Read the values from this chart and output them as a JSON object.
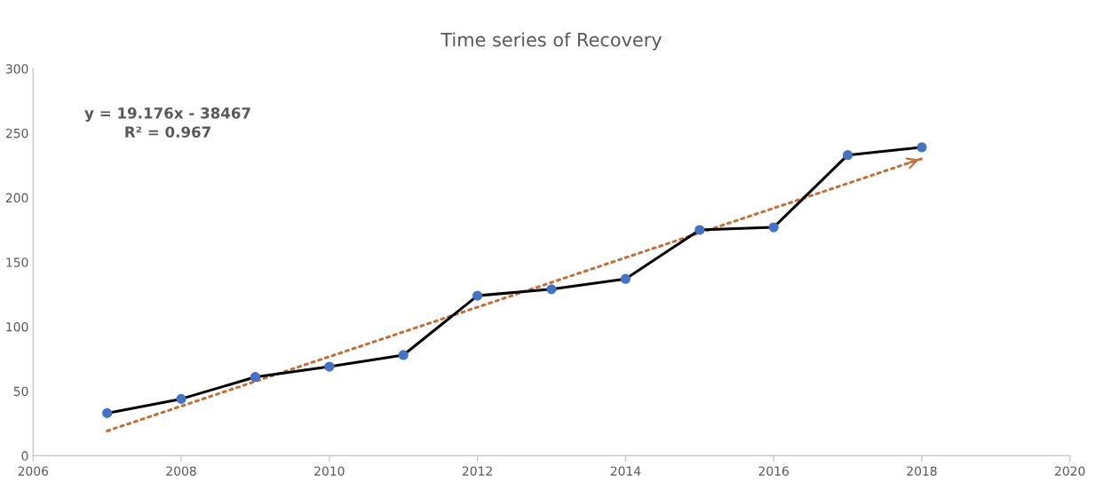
{
  "chart_data": {
    "type": "line",
    "title": "Time series of Recovery",
    "x": [
      2007,
      2008,
      2009,
      2010,
      2011,
      2012,
      2013,
      2014,
      2015,
      2016,
      2017,
      2018
    ],
    "series": [
      {
        "color": "#000000",
        "marker": "circle",
        "colors": [
          "#4472c4",
          "#4472c4",
          "#4472c4",
          "#4472c4",
          "#4472c4",
          "#4472c4",
          "#4472c4",
          "#4472c4",
          "#4472c4",
          "#4472c4",
          "#4472c4",
          "#4472c4"
        ],
        "line_style": "solid",
        "values": [
          33,
          44,
          61,
          69,
          78,
          124,
          129,
          137,
          175,
          177,
          233,
          239
        ]
      },
      {
        "type": "line",
        "color": "#c0713a",
        "marker": "none",
        "line_style": "dotted",
        "x": [
          2007,
          2018
        ],
        "values": [
          19.2,
          230.2
        ]
      }
    ],
    "xlim": [
      2006,
      2020
    ],
    "xticks": [
      2006,
      2008,
      2010,
      2012,
      2014,
      2016,
      2018,
      2020
    ],
    "ylim": [
      0,
      300
    ],
    "yticks": [
      0,
      50,
      100,
      150,
      200,
      250,
      300
    ],
    "grid": false,
    "legend": false,
    "annotations": [
      "y = 19.176x - 38467\nR² = 0.967"
    ]
  }
}
